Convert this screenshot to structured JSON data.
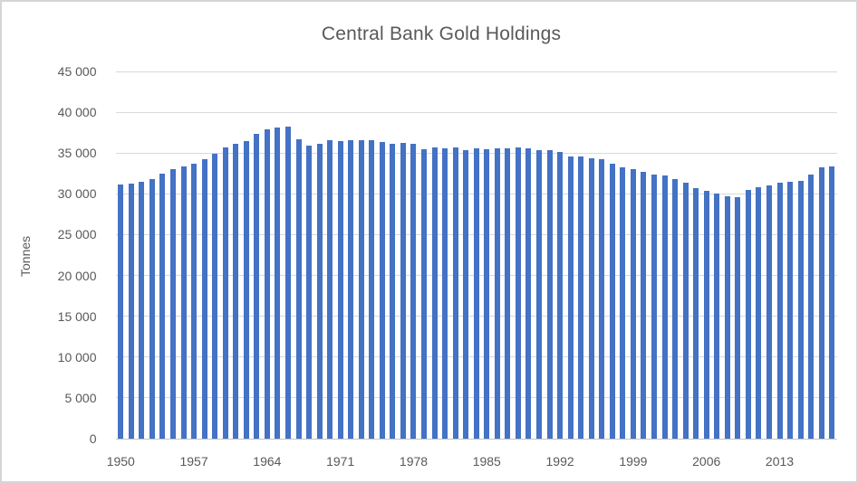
{
  "frame": {
    "background": "#ffffff",
    "border_color": "#d5d5d5"
  },
  "chart_data": {
    "type": "bar",
    "title": "Central Bank Gold Holdings",
    "xlabel": "",
    "ylabel": "Tonnes",
    "ylim": [
      0,
      45000
    ],
    "ytick_interval": 5000,
    "ytick_values": [
      0,
      5000,
      10000,
      15000,
      20000,
      25000,
      30000,
      35000,
      40000,
      45000
    ],
    "ytick_labels": [
      "0",
      "5 000",
      "10 000",
      "15 000",
      "20 000",
      "25 000",
      "30 000",
      "35 000",
      "40 000",
      "45 000"
    ],
    "xtick_labels": [
      "1950",
      "1957",
      "1964",
      "1971",
      "1978",
      "1985",
      "1992",
      "1999",
      "2006",
      "2013"
    ],
    "grid": true,
    "legend_position": "none",
    "bar_color": "#4472c4",
    "gridline_color": "#d9d9d9",
    "axis_line_color": "#c6c6c6",
    "text_color": "#595959",
    "start_year": 1950,
    "end_year": 2018,
    "categories": [
      1950,
      1951,
      1952,
      1953,
      1954,
      1955,
      1956,
      1957,
      1958,
      1959,
      1960,
      1961,
      1962,
      1963,
      1964,
      1965,
      1966,
      1967,
      1968,
      1969,
      1970,
      1971,
      1972,
      1973,
      1974,
      1975,
      1976,
      1977,
      1978,
      1979,
      1980,
      1981,
      1982,
      1983,
      1984,
      1985,
      1986,
      1987,
      1988,
      1989,
      1990,
      1991,
      1992,
      1993,
      1994,
      1995,
      1996,
      1997,
      1998,
      1999,
      2000,
      2001,
      2002,
      2003,
      2004,
      2005,
      2006,
      2007,
      2008,
      2009,
      2010,
      2011,
      2012,
      2013,
      2014,
      2015,
      2016,
      2017,
      2018
    ],
    "values": [
      31100,
      31250,
      31450,
      31800,
      32500,
      33000,
      33350,
      33750,
      34250,
      34900,
      35650,
      36150,
      36500,
      37350,
      37900,
      38150,
      38250,
      36700,
      35950,
      36100,
      36550,
      36450,
      36600,
      36550,
      36600,
      36400,
      36100,
      36250,
      36100,
      35500,
      35650,
      35550,
      35700,
      35400,
      35550,
      35500,
      35600,
      35600,
      35700,
      35550,
      35400,
      35400,
      35100,
      34600,
      34550,
      34350,
      34250,
      33700,
      33250,
      33050,
      32750,
      32400,
      32300,
      31800,
      31350,
      30700,
      30350,
      30000,
      29700,
      29600,
      30500,
      30800,
      31050,
      31400,
      31500,
      31550,
      32400,
      33200,
      33350
    ]
  }
}
